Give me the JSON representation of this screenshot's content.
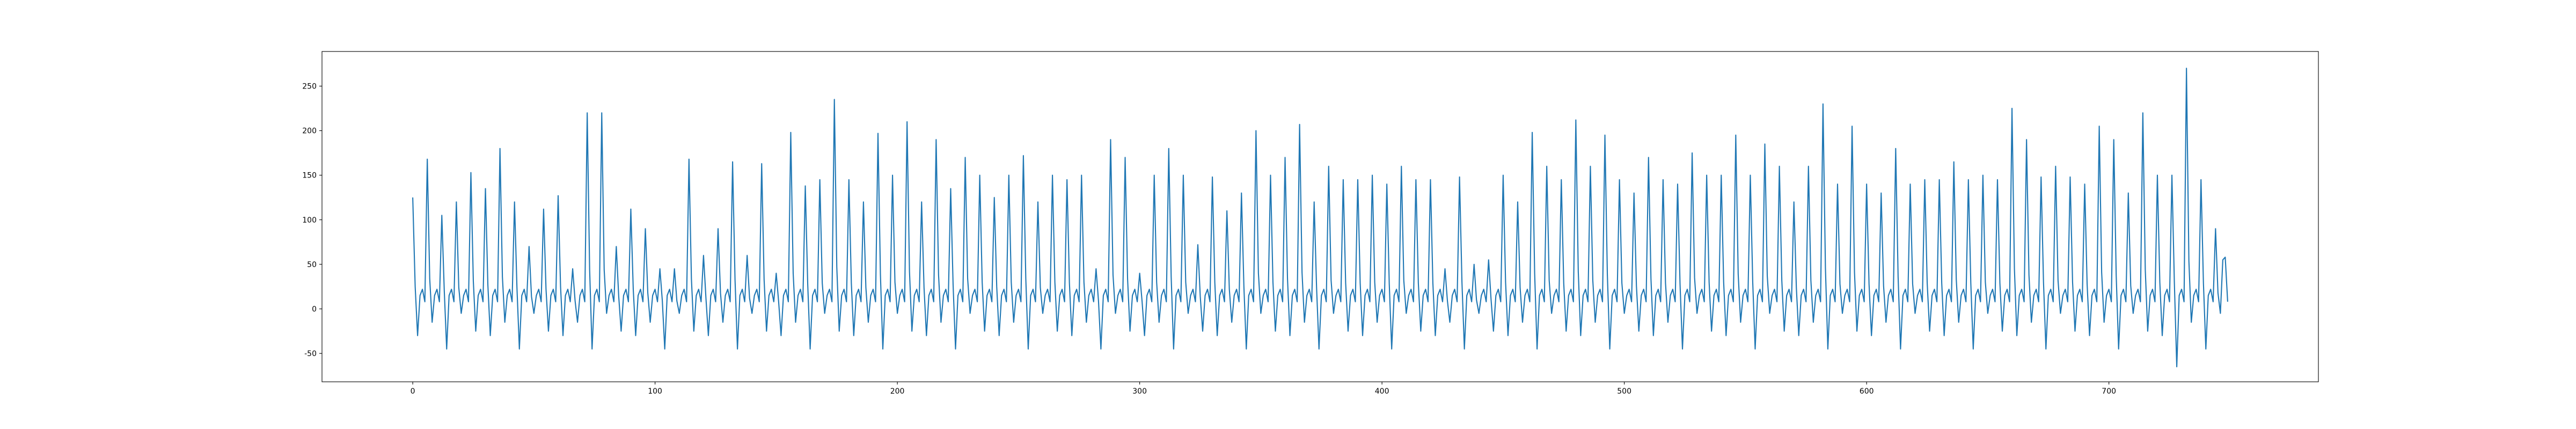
{
  "chart_data": {
    "type": "line",
    "color": "#1f77b4",
    "xlim": [
      -37.45,
      786.45
    ],
    "ylim": [
      -81.85,
      288.85
    ],
    "xticks": [
      0,
      100,
      200,
      300,
      400,
      500,
      600,
      700
    ],
    "yticks": [
      -50,
      0,
      50,
      100,
      150,
      200,
      250
    ],
    "x": [
      0,
      1,
      2,
      3,
      4,
      5,
      6,
      7,
      8,
      9,
      10,
      11,
      12,
      13,
      14,
      15,
      16,
      17,
      18,
      19,
      20,
      21,
      22,
      23,
      24,
      25,
      26,
      27,
      28,
      29,
      30,
      31,
      32,
      33,
      34,
      35,
      36,
      37,
      38,
      39,
      40,
      41,
      42,
      43,
      44,
      45,
      46,
      47,
      48,
      49,
      50,
      51,
      52,
      53,
      54,
      55,
      56,
      57,
      58,
      59,
      60,
      61,
      62,
      63,
      64,
      65,
      66,
      67,
      68,
      69,
      70,
      71,
      72,
      73,
      74,
      75,
      76,
      77,
      78,
      79,
      80,
      81,
      82,
      83,
      84,
      85,
      86,
      87,
      88,
      89,
      90,
      91,
      92,
      93,
      94,
      95,
      96,
      97,
      98,
      99,
      100,
      101,
      102,
      103,
      104,
      105,
      106,
      107,
      108,
      109,
      110,
      111,
      112,
      113,
      114,
      115,
      116,
      117,
      118,
      119,
      120,
      121,
      122,
      123,
      124,
      125,
      126,
      127,
      128,
      129,
      130,
      131,
      132,
      133,
      134,
      135,
      136,
      137,
      138,
      139,
      140,
      141,
      142,
      143,
      144,
      145,
      146,
      147,
      148,
      149,
      150,
      151,
      152,
      153,
      154,
      155,
      156,
      157,
      158,
      159,
      160,
      161,
      162,
      163,
      164,
      165,
      166,
      167,
      168,
      169,
      170,
      171,
      172,
      173,
      174,
      175,
      176,
      177,
      178,
      179,
      180,
      181,
      182,
      183,
      184,
      185,
      186,
      187,
      188,
      189,
      190,
      191,
      192,
      193,
      194,
      195,
      196,
      197,
      198,
      199,
      200,
      201,
      202,
      203,
      204,
      205,
      206,
      207,
      208,
      209,
      210,
      211,
      212,
      213,
      214,
      215,
      216,
      217,
      218,
      219,
      220,
      221,
      222,
      223,
      224,
      225,
      226,
      227,
      228,
      229,
      230,
      231,
      232,
      233,
      234,
      235,
      236,
      237,
      238,
      239,
      240,
      241,
      242,
      243,
      244,
      245,
      246,
      247,
      248,
      249,
      250,
      251,
      252,
      253,
      254,
      255,
      256,
      257,
      258,
      259,
      260,
      261,
      262,
      263,
      264,
      265,
      266,
      267,
      268,
      269,
      270,
      271,
      272,
      273,
      274,
      275,
      276,
      277,
      278,
      279,
      280,
      281,
      282,
      283,
      284,
      285,
      286,
      287,
      288,
      289,
      290,
      291,
      292,
      293,
      294,
      295,
      296,
      297,
      298,
      299,
      300,
      301,
      302,
      303,
      304,
      305,
      306,
      307,
      308,
      309,
      310,
      311,
      312,
      313,
      314,
      315,
      316,
      317,
      318,
      319,
      320,
      321,
      322,
      323,
      324,
      325,
      326,
      327,
      328,
      329,
      330,
      331,
      332,
      333,
      334,
      335,
      336,
      337,
      338,
      339,
      340,
      341,
      342,
      343,
      344,
      345,
      346,
      347,
      348,
      349,
      350,
      351,
      352,
      353,
      354,
      355,
      356,
      357,
      358,
      359,
      360,
      361,
      362,
      363,
      364,
      365,
      366,
      367,
      368,
      369,
      370,
      371,
      372,
      373,
      374,
      375,
      376,
      377,
      378,
      379,
      380,
      381,
      382,
      383,
      384,
      385,
      386,
      387,
      388,
      389,
      390,
      391,
      392,
      393,
      394,
      395,
      396,
      397,
      398,
      399,
      400,
      401,
      402,
      403,
      404,
      405,
      406,
      407,
      408,
      409,
      410,
      411,
      412,
      413,
      414,
      415,
      416,
      417,
      418,
      419,
      420,
      421,
      422,
      423,
      424,
      425,
      426,
      427,
      428,
      429,
      430,
      431,
      432,
      433,
      434,
      435,
      436,
      437,
      438,
      439,
      440,
      441,
      442,
      443,
      444,
      445,
      446,
      447,
      448,
      449,
      450,
      451,
      452,
      453,
      454,
      455,
      456,
      457,
      458,
      459,
      460,
      461,
      462,
      463,
      464,
      465,
      466,
      467,
      468,
      469,
      470,
      471,
      472,
      473,
      474,
      475,
      476,
      477,
      478,
      479,
      480,
      481,
      482,
      483,
      484,
      485,
      486,
      487,
      488,
      489,
      490,
      491,
      492,
      493,
      494,
      495,
      496,
      497,
      498,
      499,
      500,
      501,
      502,
      503,
      504,
      505,
      506,
      507,
      508,
      509,
      510,
      511,
      512,
      513,
      514,
      515,
      516,
      517,
      518,
      519,
      520,
      521,
      522,
      523,
      524,
      525,
      526,
      527,
      528,
      529,
      530,
      531,
      532,
      533,
      534,
      535,
      536,
      537,
      538,
      539,
      540,
      541,
      542,
      543,
      544,
      545,
      546,
      547,
      548,
      549,
      550,
      551,
      552,
      553,
      554,
      555,
      556,
      557,
      558,
      559,
      560,
      561,
      562,
      563,
      564,
      565,
      566,
      567,
      568,
      569,
      570,
      571,
      572,
      573,
      574,
      575,
      576,
      577,
      578,
      579,
      580,
      581,
      582,
      583,
      584,
      585,
      586,
      587,
      588,
      589,
      590,
      591,
      592,
      593,
      594,
      595,
      596,
      597,
      598,
      599,
      600,
      601,
      602,
      603,
      604,
      605,
      606,
      607,
      608,
      609,
      610,
      611,
      612,
      613,
      614,
      615,
      616,
      617,
      618,
      619,
      620,
      621,
      622,
      623,
      624,
      625,
      626,
      627,
      628,
      629,
      630,
      631,
      632,
      633,
      634,
      635,
      636,
      637,
      638,
      639,
      640,
      641,
      642,
      643,
      644,
      645,
      646,
      647,
      648,
      649,
      650,
      651,
      652,
      653,
      654,
      655,
      656,
      657,
      658,
      659,
      660,
      661,
      662,
      663,
      664,
      665,
      666,
      667,
      668,
      669,
      670,
      671,
      672,
      673,
      674,
      675,
      676,
      677,
      678,
      679,
      680,
      681,
      682,
      683,
      684,
      685,
      686,
      687,
      688,
      689,
      690,
      691,
      692,
      693,
      694,
      695,
      696,
      697,
      698,
      699,
      700,
      701,
      702,
      703,
      704,
      705,
      706,
      707,
      708,
      709,
      710,
      711,
      712,
      713,
      714,
      715,
      716,
      717,
      718,
      719,
      720,
      721,
      722,
      723,
      724,
      725,
      726,
      727,
      728,
      729,
      730,
      731,
      732,
      733,
      734,
      735,
      736,
      737,
      738,
      739,
      740,
      741,
      742,
      743,
      744,
      745,
      746,
      747,
      748,
      749
    ],
    "values": [
      125,
      25,
      -30,
      15,
      22,
      8,
      168,
      34,
      -15,
      15,
      22,
      8,
      105,
      21,
      -45,
      15,
      22,
      8,
      120,
      24,
      -5,
      15,
      22,
      8,
      153,
      31,
      -25,
      15,
      22,
      8,
      135,
      27,
      -30,
      15,
      22,
      8,
      180,
      36,
      -15,
      15,
      22,
      8,
      120,
      24,
      -45,
      15,
      22,
      8,
      70,
      14,
      -5,
      15,
      22,
      8,
      112,
      22,
      -25,
      15,
      22,
      8,
      127,
      25,
      -30,
      15,
      22,
      8,
      45,
      9,
      -15,
      15,
      22,
      8,
      220,
      44,
      -45,
      15,
      22,
      8,
      220,
      44,
      -5,
      15,
      22,
      8,
      70,
      14,
      -25,
      15,
      22,
      8,
      112,
      22,
      -30,
      15,
      22,
      8,
      90,
      18,
      -15,
      15,
      22,
      8,
      45,
      9,
      -45,
      15,
      22,
      8,
      45,
      9,
      -5,
      15,
      22,
      8,
      168,
      34,
      -25,
      15,
      22,
      8,
      60,
      12,
      -30,
      15,
      22,
      8,
      90,
      18,
      -15,
      15,
      22,
      8,
      165,
      33,
      -45,
      15,
      22,
      8,
      60,
      12,
      -5,
      15,
      22,
      8,
      163,
      33,
      -25,
      15,
      22,
      8,
      40,
      8,
      -30,
      15,
      22,
      8,
      198,
      40,
      -15,
      15,
      22,
      8,
      138,
      28,
      -45,
      15,
      22,
      8,
      145,
      29,
      -5,
      15,
      22,
      8,
      235,
      47,
      -25,
      15,
      22,
      8,
      145,
      29,
      -30,
      15,
      22,
      8,
      120,
      24,
      -15,
      15,
      22,
      8,
      197,
      39,
      -45,
      15,
      22,
      8,
      150,
      30,
      -5,
      15,
      22,
      8,
      210,
      42,
      -25,
      15,
      22,
      8,
      120,
      24,
      -30,
      15,
      22,
      8,
      190,
      38,
      -15,
      15,
      22,
      8,
      135,
      27,
      -45,
      15,
      22,
      8,
      170,
      34,
      -5,
      15,
      22,
      8,
      150,
      30,
      -25,
      15,
      22,
      8,
      125,
      25,
      -30,
      15,
      22,
      8,
      150,
      30,
      -15,
      15,
      22,
      8,
      172,
      34,
      -45,
      15,
      22,
      8,
      120,
      24,
      -5,
      15,
      22,
      8,
      150,
      30,
      -25,
      15,
      22,
      8,
      145,
      29,
      -30,
      15,
      22,
      8,
      150,
      30,
      -15,
      15,
      22,
      8,
      45,
      9,
      -45,
      15,
      22,
      8,
      190,
      38,
      -5,
      15,
      22,
      8,
      170,
      34,
      -25,
      15,
      22,
      8,
      40,
      8,
      -30,
      15,
      22,
      8,
      150,
      30,
      -15,
      15,
      22,
      8,
      180,
      36,
      -45,
      15,
      22,
      8,
      150,
      30,
      -5,
      15,
      22,
      8,
      72,
      14,
      -25,
      15,
      22,
      8,
      148,
      30,
      -30,
      15,
      22,
      8,
      110,
      22,
      -15,
      15,
      22,
      8,
      130,
      26,
      -45,
      15,
      22,
      8,
      200,
      40,
      -5,
      15,
      22,
      8,
      150,
      30,
      -25,
      15,
      22,
      8,
      170,
      34,
      -30,
      15,
      22,
      8,
      207,
      41,
      -15,
      15,
      22,
      8,
      120,
      24,
      -45,
      15,
      22,
      8,
      160,
      32,
      -5,
      15,
      22,
      8,
      145,
      29,
      -25,
      15,
      22,
      8,
      145,
      29,
      -30,
      15,
      22,
      8,
      150,
      30,
      -15,
      15,
      22,
      8,
      140,
      28,
      -45,
      15,
      22,
      8,
      160,
      32,
      -5,
      15,
      22,
      8,
      145,
      29,
      -25,
      15,
      22,
      8,
      145,
      29,
      -30,
      15,
      22,
      8,
      45,
      9,
      -15,
      15,
      22,
      8,
      148,
      30,
      -45,
      15,
      22,
      8,
      50,
      10,
      -5,
      15,
      22,
      8,
      55,
      11,
      -25,
      15,
      22,
      8,
      150,
      30,
      -30,
      15,
      22,
      8,
      120,
      24,
      -15,
      15,
      22,
      8,
      198,
      40,
      -45,
      15,
      22,
      8,
      160,
      32,
      -5,
      15,
      22,
      8,
      145,
      29,
      -25,
      15,
      22,
      8,
      212,
      42,
      -30,
      15,
      22,
      8,
      160,
      32,
      -15,
      15,
      22,
      8,
      195,
      39,
      -45,
      15,
      22,
      8,
      145,
      29,
      -5,
      15,
      22,
      8,
      130,
      26,
      -25,
      15,
      22,
      8,
      170,
      34,
      -30,
      15,
      22,
      8,
      145,
      29,
      -15,
      15,
      22,
      8,
      140,
      28,
      -45,
      15,
      22,
      8,
      175,
      35,
      -5,
      15,
      22,
      8,
      150,
      30,
      -25,
      15,
      22,
      8,
      150,
      30,
      -30,
      15,
      22,
      8,
      195,
      39,
      -15,
      15,
      22,
      8,
      150,
      30,
      -45,
      15,
      22,
      8,
      185,
      37,
      -5,
      15,
      22,
      8,
      160,
      32,
      -25,
      15,
      22,
      8,
      120,
      24,
      -30,
      15,
      22,
      8,
      160,
      32,
      -15,
      15,
      22,
      8,
      230,
      46,
      -45,
      15,
      22,
      8,
      140,
      28,
      -5,
      15,
      22,
      8,
      205,
      41,
      -25,
      15,
      22,
      8,
      140,
      28,
      -30,
      15,
      22,
      8,
      130,
      26,
      -15,
      15,
      22,
      8,
      180,
      36,
      -45,
      15,
      22,
      8,
      140,
      28,
      -5,
      15,
      22,
      8,
      145,
      29,
      -25,
      15,
      22,
      8,
      145,
      29,
      -30,
      15,
      22,
      8,
      165,
      33,
      -15,
      15,
      22,
      8,
      145,
      29,
      -45,
      15,
      22,
      8,
      150,
      30,
      -5,
      15,
      22,
      8,
      145,
      29,
      -25,
      15,
      22,
      8,
      225,
      45,
      -30,
      15,
      22,
      8,
      190,
      38,
      -15,
      15,
      22,
      8,
      148,
      30,
      -45,
      15,
      22,
      8,
      160,
      32,
      -5,
      15,
      22,
      8,
      148,
      30,
      -25,
      15,
      22,
      8,
      140,
      28,
      -30,
      15,
      22,
      8,
      205,
      41,
      -15,
      15,
      22,
      8,
      190,
      38,
      -45,
      15,
      22,
      8,
      130,
      26,
      -5,
      15,
      22,
      8,
      220,
      44,
      -25,
      15,
      22,
      8,
      150,
      30,
      -30,
      15,
      22,
      8,
      150,
      30,
      -65,
      15,
      22,
      8,
      270,
      54,
      -15,
      15,
      22,
      8,
      145,
      29,
      -45,
      15,
      22,
      8,
      90,
      18,
      -5,
      55,
      58,
      8
    ]
  }
}
